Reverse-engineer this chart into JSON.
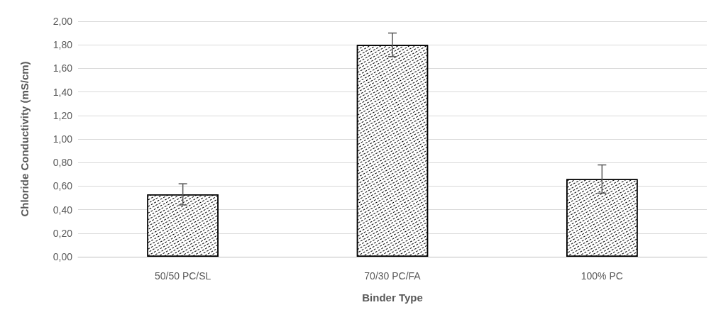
{
  "chart_data": {
    "type": "bar",
    "xlabel": "Binder Type",
    "ylabel": "Chloride Conductivity (mS/cm)",
    "categories": [
      "50/50 PC/SL",
      "70/30 PC/FA",
      "100% PC"
    ],
    "values": [
      0.53,
      1.8,
      0.66
    ],
    "errors": [
      0.09,
      0.1,
      0.12
    ],
    "color": "#ffffff",
    "ylim": [
      0,
      2
    ],
    "yticks": [
      {
        "value": 0,
        "label": "0,00"
      },
      {
        "value": 0.2,
        "label": "0,20"
      },
      {
        "value": 0.4,
        "label": "0,40"
      },
      {
        "value": 0.6,
        "label": "0,60"
      },
      {
        "value": 0.8,
        "label": "0,80"
      },
      {
        "value": 1,
        "label": "1,00"
      },
      {
        "value": 1.2,
        "label": "1,20"
      },
      {
        "value": 1.4,
        "label": "1,40"
      },
      {
        "value": 1.6,
        "label": "1,60"
      },
      {
        "value": 1.8,
        "label": "1,80"
      },
      {
        "value": 2,
        "label": "2,00"
      }
    ],
    "grid": "y"
  }
}
